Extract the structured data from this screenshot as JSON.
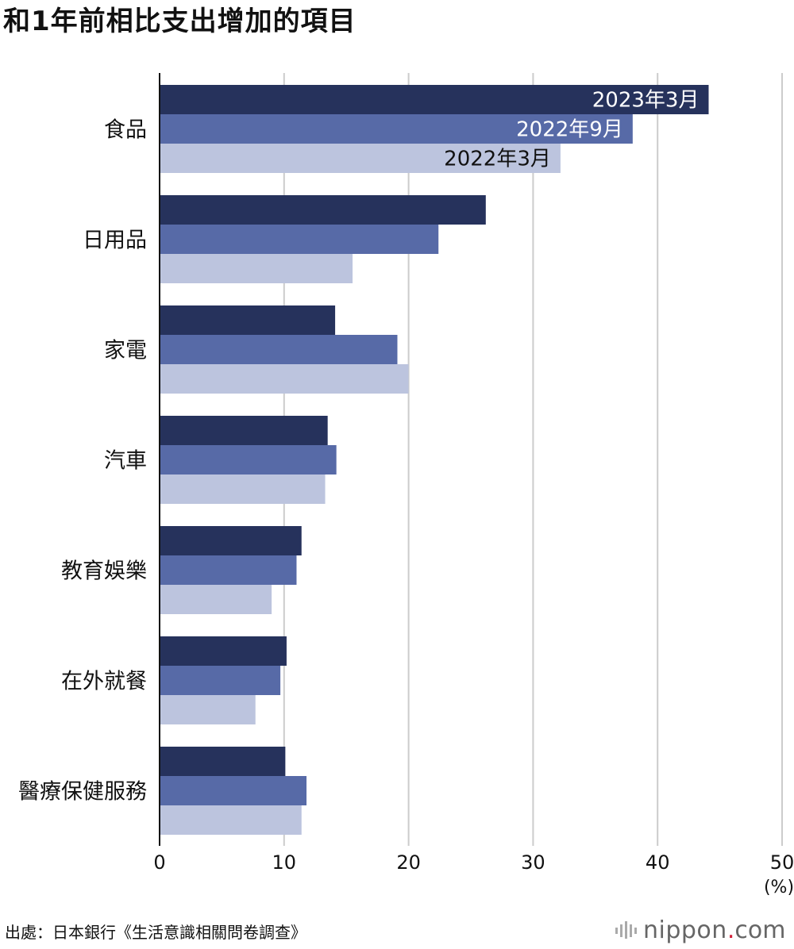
{
  "title": "和1年前相比支出增加的項目",
  "chart_data": {
    "type": "bar",
    "orientation": "horizontal",
    "categories": [
      "食品",
      "日用品",
      "家電",
      "汽車",
      "教育娛樂",
      "在外就餐",
      "醫療保健服務"
    ],
    "series": [
      {
        "name": "2023年3月",
        "color": "#26325c",
        "values": [
          44.1,
          26.2,
          14.1,
          13.5,
          11.4,
          10.2,
          10.1
        ]
      },
      {
        "name": "2022年9月",
        "color": "#576aa7",
        "values": [
          38.0,
          22.4,
          19.1,
          14.2,
          11.0,
          9.7,
          11.8
        ]
      },
      {
        "name": "2022年3月",
        "color": "#bcc4de",
        "values": [
          32.2,
          15.5,
          20.0,
          13.3,
          9.0,
          7.7,
          11.4
        ]
      }
    ],
    "xlim": [
      0,
      50
    ],
    "xticks": [
      0,
      10,
      20,
      30,
      40,
      50
    ],
    "xunit": "(%)",
    "grid": true,
    "legend": "labels inside the first group of bars"
  },
  "source": "出處：日本銀行《生活意識相關問卷調查》",
  "logo": {
    "word": "nippon",
    "dot": ".",
    "tld": "com",
    "icon": "nippon-bars-icon"
  }
}
